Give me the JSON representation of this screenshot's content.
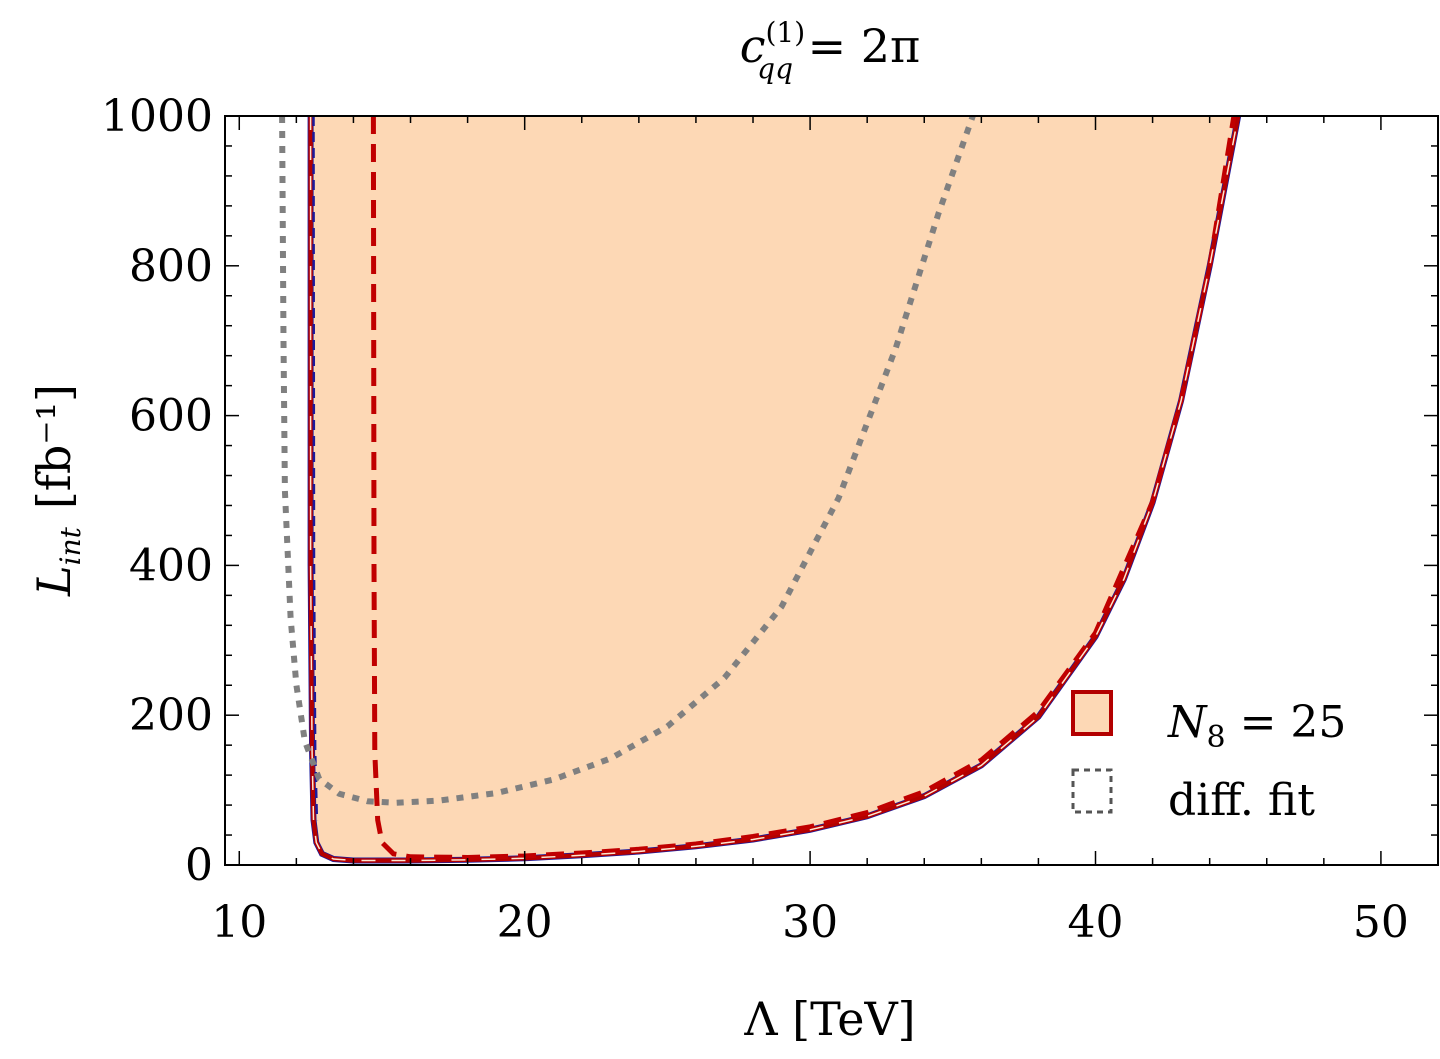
{
  "chart_data": {
    "type": "area",
    "title": {
      "base": "c",
      "superscript": "(1)",
      "subscript": "qq",
      "rest": " = 2π"
    },
    "xlabel": "Λ [TeV]",
    "ylabel": {
      "base": "L",
      "subscript": "int",
      "unit": "[fb⁻¹]"
    },
    "xlim": [
      9.5,
      52
    ],
    "ylim": [
      0,
      1000
    ],
    "x_ticks": [
      10,
      20,
      30,
      40,
      50
    ],
    "y_ticks": [
      0,
      200,
      400,
      600,
      800,
      1000
    ],
    "x_tick_labels": [
      "10",
      "20",
      "30",
      "40",
      "50"
    ],
    "y_tick_labels": [
      "0",
      "200",
      "400",
      "600",
      "800",
      "1000"
    ],
    "grid": false,
    "legend_position": "bottom-right",
    "legend": [
      {
        "label_base": "N",
        "label_subscript": "8",
        "label_rest": " = 25",
        "style": "filled-box"
      },
      {
        "label": "diff. fit",
        "style": "dotted-box"
      }
    ],
    "colors": {
      "fill": "#fdd8b5",
      "solid_red": "#b30000",
      "dashed_red": "#c00000",
      "thin_blue": "#1a1a9c",
      "dotted_gray": "#808080"
    },
    "series": [
      {
        "name": "N8 = 25",
        "style": "filled-region-solid-outline",
        "x": [
          12.5,
          12.5,
          12.55,
          12.6,
          12.7,
          12.9,
          13.3,
          14,
          16,
          18,
          20,
          22,
          24,
          26,
          28,
          30,
          32,
          34,
          36,
          38,
          40,
          41,
          42,
          43,
          44,
          45
        ],
        "y": [
          1000,
          400,
          150,
          60,
          30,
          15,
          8,
          6,
          6,
          7,
          9,
          13,
          18,
          25,
          34,
          47,
          65,
          92,
          133,
          198,
          305,
          382,
          484,
          620,
          800,
          1000
        ]
      },
      {
        "style": "dashed-red",
        "x": [
          14.7,
          14.72,
          14.75,
          14.85,
          15.0,
          15.4,
          16,
          18,
          20,
          22,
          24,
          26,
          28,
          30,
          32,
          34,
          36,
          38,
          40,
          42,
          43,
          44,
          44.85
        ],
        "y": [
          1000,
          400,
          150,
          60,
          30,
          15,
          11,
          10,
          12,
          16,
          21,
          28,
          38,
          51,
          70,
          98,
          140,
          205,
          310,
          485,
          620,
          800,
          1000
        ]
      },
      {
        "style": "dashed-blue",
        "x": [
          12.6,
          12.62,
          12.66,
          12.72
        ],
        "y": [
          1000,
          400,
          150,
          60
        ]
      },
      {
        "style": "dotted-gray",
        "x": [
          11.5,
          11.55,
          11.6,
          11.8,
          12.0,
          12.3,
          12.8,
          13.5,
          14.5,
          15.5,
          17,
          19,
          21,
          23,
          25,
          27,
          29,
          31,
          33,
          34.5,
          35.7
        ],
        "y": [
          1000,
          700,
          500,
          330,
          240,
          165,
          115,
          95,
          85,
          83,
          86,
          96,
          114,
          142,
          185,
          250,
          345,
          490,
          690,
          870,
          1000
        ]
      }
    ]
  }
}
